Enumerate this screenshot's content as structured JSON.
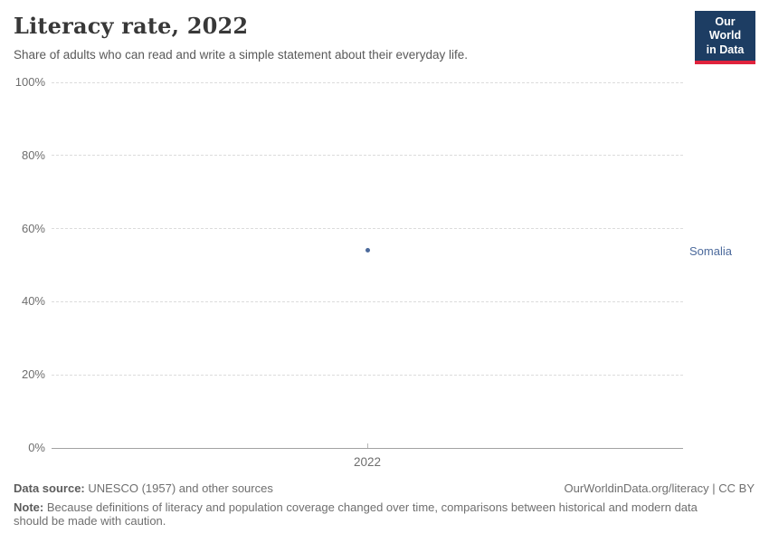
{
  "header": {
    "title": "Literacy rate, 2022",
    "subtitle": "Share of adults who can read and write a simple statement about their everyday life.",
    "logo": {
      "line1": "Our World",
      "line2": "in Data",
      "bg_color": "#1d3d63",
      "accent_color": "#e0233d"
    }
  },
  "chart_data": {
    "type": "scatter",
    "title": "Literacy rate, 2022",
    "x": [
      2022
    ],
    "series": [
      {
        "name": "Somalia",
        "values": [
          54
        ],
        "color": "#4c6a9c"
      }
    ],
    "xlabel": "",
    "ylabel": "",
    "ylim": [
      0,
      100
    ],
    "yticks": [
      0,
      20,
      40,
      60,
      80,
      100
    ],
    "ytick_labels": [
      "0%",
      "20%",
      "40%",
      "60%",
      "80%",
      "100%"
    ],
    "xtick_labels": [
      "2022"
    ],
    "grid": "horizontal-dashed",
    "legend_position": "entity-label-right"
  },
  "footer": {
    "datasource_label": "Data source:",
    "datasource_value": " UNESCO (1957) and other sources",
    "link": "OurWorldinData.org/literacy | CC BY",
    "note_label": "Note:",
    "note_value": " Because definitions of literacy and population coverage changed over time, comparisons between historical and modern data should be made with caution."
  }
}
